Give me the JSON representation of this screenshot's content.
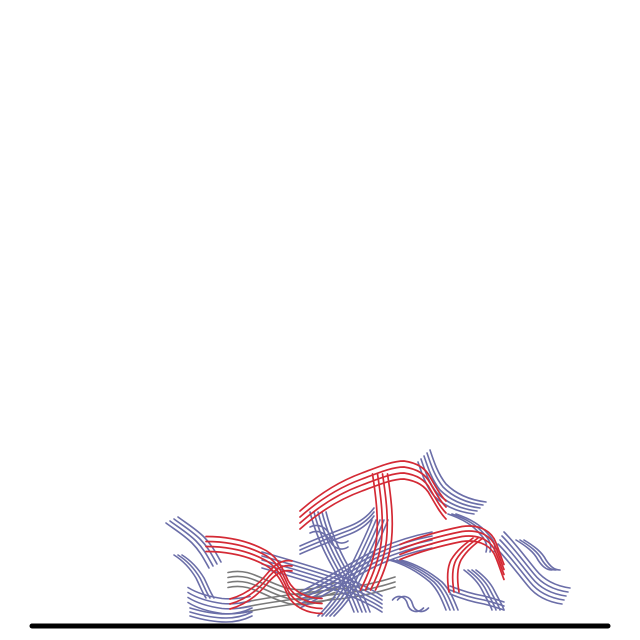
{
  "scene": {
    "colors": {
      "background": "#ffffff",
      "ground": "#000000",
      "strand_blue": "#6b6ea8",
      "strand_red": "#d42a35",
      "strand_gray": "#7a7a7a"
    },
    "strand_groups": [
      {
        "name": "left-fringe",
        "color_key": "strand_blue"
      },
      {
        "name": "left-red-bridge",
        "color_key": "strand_red"
      },
      {
        "name": "central-bundle",
        "color_key": "strand_blue"
      },
      {
        "name": "arch-red",
        "color_key": "strand_red"
      },
      {
        "name": "top-right-fringe",
        "color_key": "strand_blue"
      },
      {
        "name": "right-red-loop",
        "color_key": "strand_red"
      },
      {
        "name": "far-right-fringe",
        "color_key": "strand_blue"
      },
      {
        "name": "gray-under-strands",
        "color_key": "strand_gray"
      }
    ]
  }
}
